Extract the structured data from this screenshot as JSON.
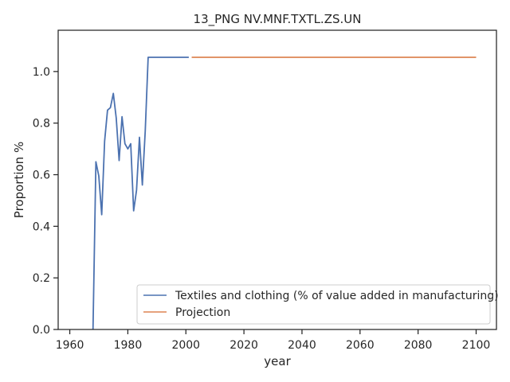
{
  "chart_data": {
    "type": "line",
    "title": "13_PNG NV.MNF.TXTL.ZS.UN",
    "xlabel": "year",
    "ylabel": "Proportion %",
    "xlim": [
      1956,
      2107
    ],
    "ylim": [
      0,
      1.16
    ],
    "xticks": [
      1960,
      1980,
      2000,
      2020,
      2040,
      2060,
      2080,
      2100
    ],
    "yticks": [
      0.0,
      0.2,
      0.4,
      0.6,
      0.8,
      1.0
    ],
    "grid": false,
    "legend_position": "lower-right",
    "series": [
      {
        "name": "Textiles and clothing (% of value added in manufacturing)",
        "color": "#4c72b0",
        "x": [
          1968,
          1969,
          1970,
          1971,
          1972,
          1973,
          1974,
          1975,
          1976,
          1977,
          1978,
          1979,
          1980,
          1981,
          1982,
          1983,
          1984,
          1985,
          1986,
          1987,
          1988,
          1990,
          1995,
          2000,
          2001
        ],
        "y": [
          0.0,
          0.65,
          0.595,
          0.445,
          0.73,
          0.85,
          0.86,
          0.915,
          0.82,
          0.655,
          0.825,
          0.72,
          0.7,
          0.72,
          0.46,
          0.54,
          0.745,
          0.56,
          0.77,
          1.055,
          1.055,
          1.055,
          1.055,
          1.055,
          1.055
        ]
      },
      {
        "name": "Projection",
        "color": "#dd8452",
        "x": [
          2002,
          2100
        ],
        "y": [
          1.055,
          1.055
        ]
      }
    ]
  }
}
